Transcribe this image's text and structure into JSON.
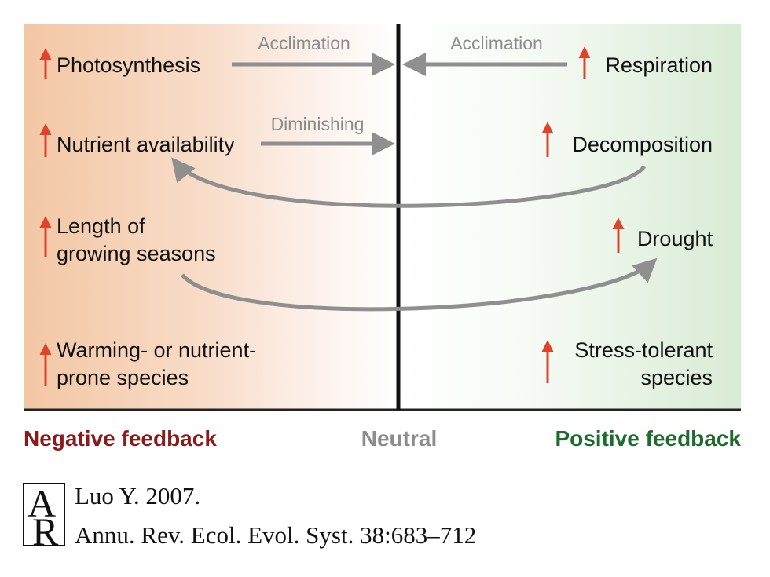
{
  "arrows": {
    "acclimation_left": "Acclimation",
    "acclimation_right": "Acclimation",
    "diminishing": "Diminishing"
  },
  "left": {
    "photosynthesis": "Photosynthesis",
    "nutrient": "Nutrient availability",
    "growing_line1": "Length of",
    "growing_line2": "growing seasons",
    "species_line1": "Warming- or nutrient-",
    "species_line2": "prone species"
  },
  "right": {
    "respiration": "Respiration",
    "decomposition": "Decomposition",
    "drought": "Drought",
    "species_line1": "Stress-tolerant",
    "species_line2": "species"
  },
  "footer": {
    "negative": "Negative feedback",
    "neutral": "Neutral",
    "positive": "Positive feedback"
  },
  "citation": {
    "logo_a": "A",
    "logo_r": "R",
    "line1": "Luo Y. 2007.",
    "line2": "Annu. Rev. Ecol. Evol. Syst. 38:683–712"
  },
  "colors": {
    "negative": "#8b1a1a",
    "neutral": "#8c8c8c",
    "positive": "#1e6b2e",
    "increase_arrow": "#e0432b",
    "flow_arrow": "#8f8f8f"
  },
  "icons": {
    "increase": "up-arrow-icon"
  }
}
